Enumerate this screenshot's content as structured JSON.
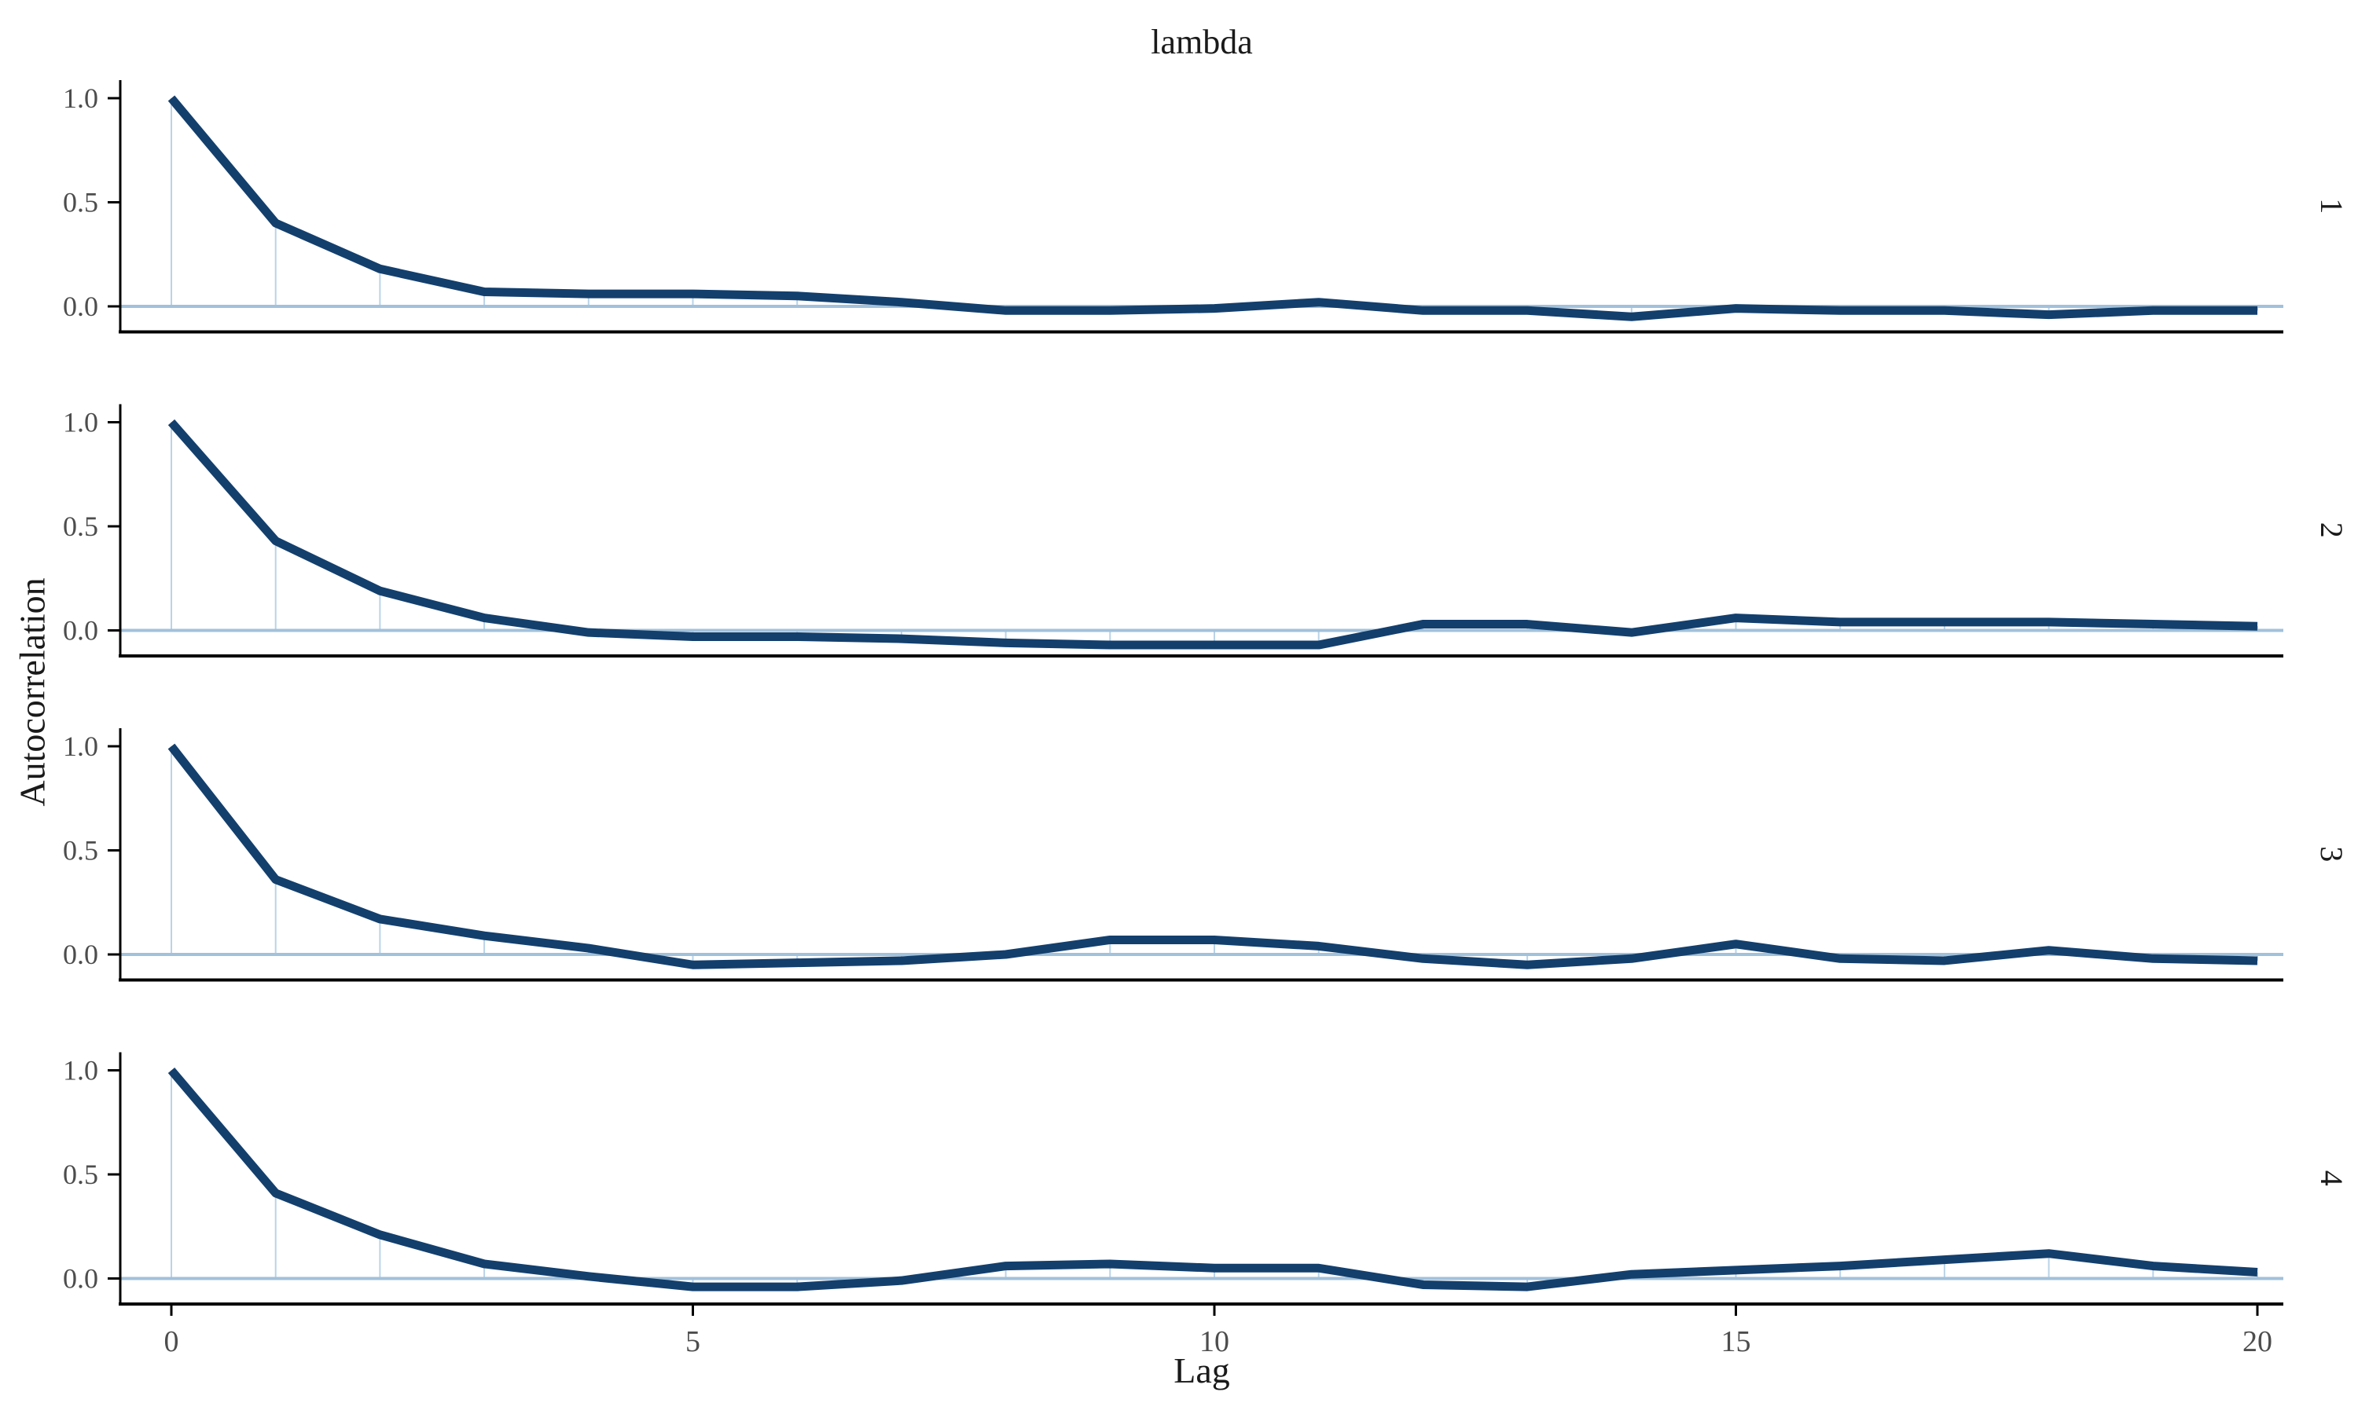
{
  "page": {
    "background": "#ffffff"
  },
  "chart_data": {
    "type": "line",
    "title": "lambda",
    "xlabel": "Lag",
    "ylabel": "Autocorrelation",
    "x_ticks": [
      "0",
      "5",
      "10",
      "15",
      "20"
    ],
    "x_tick_values": [
      0,
      5,
      10,
      15,
      20
    ],
    "y_ticks": [
      "1.0",
      "0.5",
      "0.0"
    ],
    "y_tick_values": [
      1.0,
      0.5,
      0.0
    ],
    "xlim": [
      0,
      20
    ],
    "ylim": [
      -0.12,
      1.08
    ],
    "grid": false,
    "legend": "none",
    "facet_position": "right-strip",
    "colors": {
      "line": "#133f6d",
      "stem": "#bad3e7",
      "zero_line": "#a2c1da",
      "axis": "#000000",
      "tick_label": "#4d4d4d",
      "text": "#1a1a1a"
    },
    "lags": [
      0,
      1,
      2,
      3,
      4,
      5,
      6,
      7,
      8,
      9,
      10,
      11,
      12,
      13,
      14,
      15,
      16,
      17,
      18,
      19,
      20
    ],
    "facets": [
      {
        "label": "1",
        "acf": [
          1.0,
          0.4,
          0.18,
          0.07,
          0.06,
          0.06,
          0.05,
          0.02,
          -0.02,
          -0.02,
          -0.01,
          0.02,
          -0.02,
          -0.02,
          -0.05,
          -0.01,
          -0.02,
          -0.02,
          -0.04,
          -0.02,
          -0.02
        ]
      },
      {
        "label": "2",
        "acf": [
          1.0,
          0.43,
          0.19,
          0.06,
          -0.01,
          -0.03,
          -0.03,
          -0.04,
          -0.06,
          -0.07,
          -0.07,
          -0.07,
          0.03,
          0.03,
          -0.01,
          0.06,
          0.04,
          0.04,
          0.04,
          0.03,
          0.02
        ]
      },
      {
        "label": "3",
        "acf": [
          1.0,
          0.36,
          0.17,
          0.09,
          0.03,
          -0.05,
          -0.04,
          -0.03,
          0.0,
          0.07,
          0.07,
          0.04,
          -0.02,
          -0.05,
          -0.02,
          0.05,
          -0.02,
          -0.03,
          0.02,
          -0.02,
          -0.03
        ]
      },
      {
        "label": "4",
        "acf": [
          1.0,
          0.41,
          0.21,
          0.07,
          0.01,
          -0.04,
          -0.04,
          -0.01,
          0.06,
          0.07,
          0.05,
          0.05,
          -0.03,
          -0.04,
          0.02,
          0.04,
          0.06,
          0.09,
          0.12,
          0.06,
          0.03
        ]
      }
    ]
  }
}
